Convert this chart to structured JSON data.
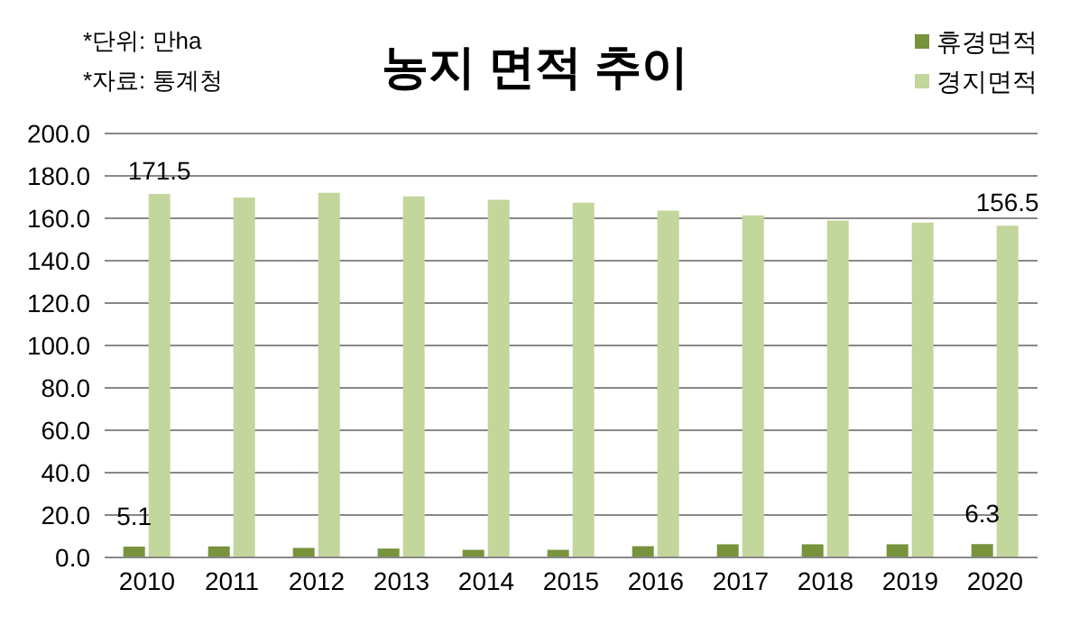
{
  "chart_data": {
    "type": "bar",
    "title": "농지 면적 추이",
    "annotations": [
      "*단위: 만ha",
      "*자료: 통계청"
    ],
    "categories": [
      "2010",
      "2011",
      "2012",
      "2013",
      "2014",
      "2015",
      "2016",
      "2017",
      "2018",
      "2019",
      "2020"
    ],
    "series": [
      {
        "name": "휴경면적",
        "color": "#77933c",
        "values": [
          5.1,
          5.2,
          4.5,
          4.2,
          3.6,
          3.6,
          5.3,
          6.2,
          6.2,
          6.2,
          6.3
        ],
        "value_labels": [
          "5.1",
          null,
          null,
          null,
          null,
          null,
          null,
          null,
          null,
          null,
          "6.3"
        ]
      },
      {
        "name": "경지면적",
        "color": "#c3d69b",
        "values": [
          171.5,
          169.8,
          172.0,
          170.3,
          168.7,
          167.3,
          163.6,
          161.4,
          158.9,
          158.0,
          156.5
        ],
        "value_labels": [
          "171.5",
          null,
          null,
          null,
          null,
          null,
          null,
          null,
          null,
          null,
          "156.5"
        ]
      }
    ],
    "ylim": [
      0,
      200
    ],
    "yticks": [
      {
        "value": 0,
        "label": "0.0"
      },
      {
        "value": 20,
        "label": "20.0"
      },
      {
        "value": 40,
        "label": "40.0"
      },
      {
        "value": 60,
        "label": "60.0"
      },
      {
        "value": 80,
        "label": "80.0"
      },
      {
        "value": 100,
        "label": "100.0"
      },
      {
        "value": 120,
        "label": "120.0"
      },
      {
        "value": 140,
        "label": "140.0"
      },
      {
        "value": 160,
        "label": "160.0"
      },
      {
        "value": 180,
        "label": "180.0"
      },
      {
        "value": 200,
        "label": "200.0"
      }
    ],
    "grid": "y",
    "legend": "top right"
  }
}
